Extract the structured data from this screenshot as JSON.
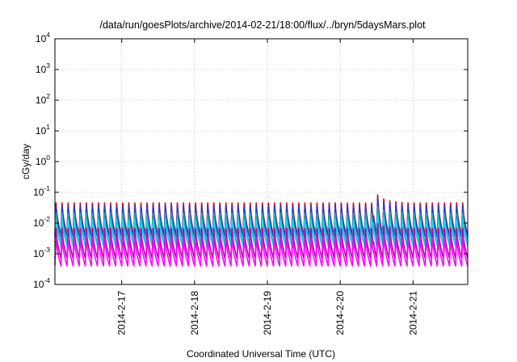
{
  "chart_data": {
    "type": "line",
    "title": "/data/run/goesPlots/archive/2014-02-21/18:00/flux/../bryn/5daysMars.plot",
    "xlabel": "Coordinated Universal Time (UTC)",
    "ylabel": "cGy/day",
    "y_scale": "log",
    "ylim": [
      0.0001,
      10000
    ],
    "xlim": [
      "2014-02-16T02:00",
      "2014-02-21T18:00"
    ],
    "x_ticks": [
      {
        "date": "2014-02-17T00:00",
        "label": "2014-2-17"
      },
      {
        "date": "2014-02-18T00:00",
        "label": "2014-2-18"
      },
      {
        "date": "2014-02-19T00:00",
        "label": "2014-2-19"
      },
      {
        "date": "2014-02-20T00:00",
        "label": "2014-2-20"
      },
      {
        "date": "2014-02-21T00:00",
        "label": "2014-2-21"
      }
    ],
    "y_ticks": [
      {
        "value": 0.0001,
        "base": "10",
        "exp": "-4"
      },
      {
        "value": 0.001,
        "base": "10",
        "exp": "-3"
      },
      {
        "value": 0.01,
        "base": "10",
        "exp": "-2"
      },
      {
        "value": 0.1,
        "base": "10",
        "exp": "-1"
      },
      {
        "value": 1,
        "base": "10",
        "exp": "0"
      },
      {
        "value": 10,
        "base": "10",
        "exp": "1"
      },
      {
        "value": 100,
        "base": "10",
        "exp": "2"
      },
      {
        "value": 1000,
        "base": "10",
        "exp": "3"
      },
      {
        "value": 10000,
        "base": "10",
        "exp": "4"
      }
    ],
    "grid": true,
    "cycle_hours": 2,
    "spike": {
      "date": "2014-02-20T11:00",
      "peak": 0.15
    },
    "series": [
      {
        "color": "#e0001b",
        "peak": 0.055,
        "trough": 0.004
      },
      {
        "color": "#1f3fd6",
        "peak": 0.045,
        "trough": 0.0035
      },
      {
        "color": "#19b3b3",
        "peak": 0.025,
        "trough": 0.0022
      },
      {
        "color": "#00e5e5",
        "peak": 0.015,
        "trough": 0.0018
      },
      {
        "color": "#b000b0",
        "peak": 0.008,
        "trough": 0.0007
      },
      {
        "color": "#ff00ff",
        "peak": 0.004,
        "trough": 0.0004
      }
    ]
  }
}
